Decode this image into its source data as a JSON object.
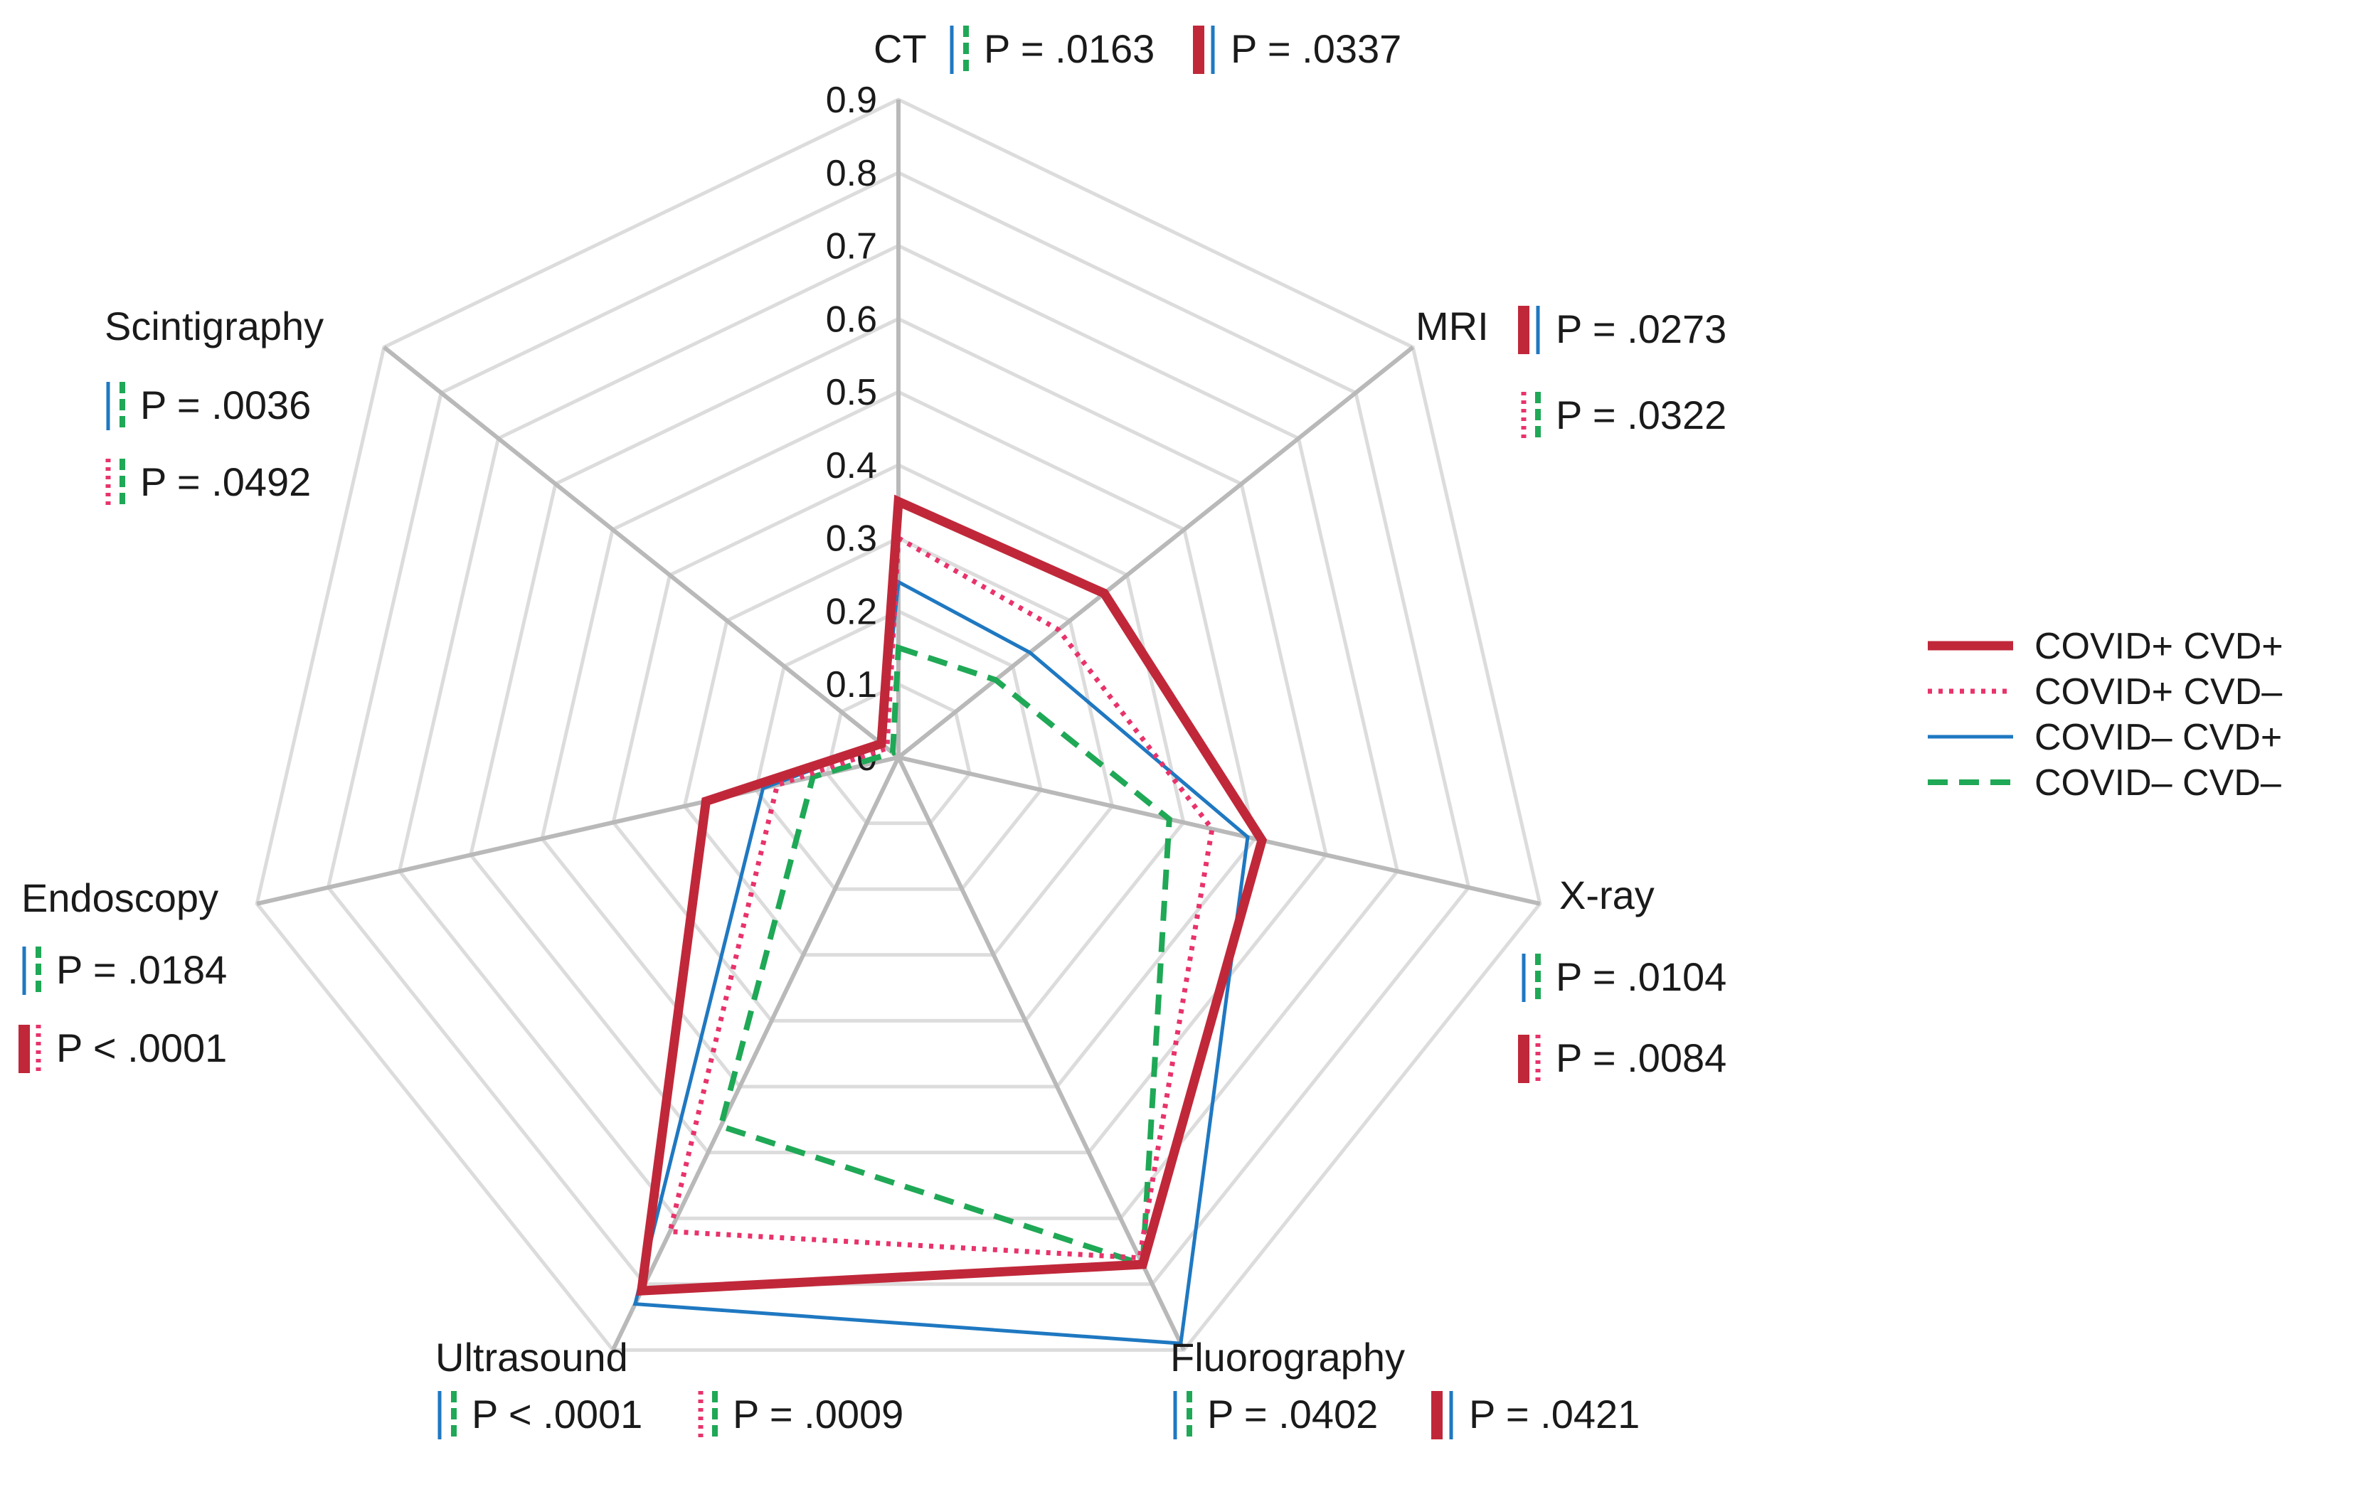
{
  "chart_data": {
    "type": "radar",
    "categories": [
      "CT",
      "MRI",
      "X-ray",
      "Fluorography",
      "Ultrasound",
      "Endoscopy",
      "Scintigraphy"
    ],
    "rlim": [
      0,
      0.9
    ],
    "ticks": [
      "0",
      "0.1",
      "0.2",
      "0.3",
      "0.4",
      "0.5",
      "0.6",
      "0.7",
      "0.8",
      "0.9"
    ],
    "tick_values": [
      0,
      0.1,
      0.2,
      0.3,
      0.4,
      0.5,
      0.6,
      0.7,
      0.8,
      0.9
    ],
    "grid": true,
    "legend_position": "right",
    "series": [
      {
        "key": "s1",
        "name": "COVID+ CVD+",
        "color": "#c0283a",
        "style": "solid-thick",
        "values": [
          0.35,
          0.36,
          0.51,
          0.77,
          0.81,
          0.27,
          0.03
        ]
      },
      {
        "key": "s2",
        "name": "COVID+ CVD–",
        "color": "#e8336b",
        "style": "dotted",
        "values": [
          0.3,
          0.28,
          0.44,
          0.76,
          0.72,
          0.17,
          0.02
        ]
      },
      {
        "key": "s3",
        "name": "COVID– CVD+",
        "color": "#1f78c1",
        "style": "solid-thin",
        "values": [
          0.24,
          0.23,
          0.49,
          0.89,
          0.83,
          0.19,
          0.03
        ]
      },
      {
        "key": "s4",
        "name": "COVID– CVD–",
        "color": "#1fa856",
        "style": "dashed",
        "values": [
          0.15,
          0.17,
          0.38,
          0.77,
          0.56,
          0.12,
          0.01
        ]
      }
    ],
    "annotations": [
      {
        "axis": "CT",
        "texts": [
          {
            "pair": [
              "s3",
              "s4"
            ],
            "text": "P = .0163"
          },
          {
            "pair": [
              "s1",
              "s3"
            ],
            "text": "P = .0337"
          }
        ]
      },
      {
        "axis": "MRI",
        "texts": [
          {
            "pair": [
              "s1",
              "s3"
            ],
            "text": "P = .0273"
          },
          {
            "pair": [
              "s2",
              "s4"
            ],
            "text": "P = .0322"
          }
        ]
      },
      {
        "axis": "X-ray",
        "texts": [
          {
            "pair": [
              "s3",
              "s4"
            ],
            "text": "P = .0104"
          },
          {
            "pair": [
              "s1",
              "s2"
            ],
            "text": "P = .0084"
          }
        ]
      },
      {
        "axis": "Fluorography",
        "texts": [
          {
            "pair": [
              "s3",
              "s4"
            ],
            "text": "P = .0402"
          },
          {
            "pair": [
              "s1",
              "s3"
            ],
            "text": "P = .0421"
          }
        ]
      },
      {
        "axis": "Ultrasound",
        "texts": [
          {
            "pair": [
              "s3",
              "s4"
            ],
            "text": "P < .0001"
          },
          {
            "pair": [
              "s2",
              "s4"
            ],
            "text": "P = .0009"
          }
        ]
      },
      {
        "axis": "Endoscopy",
        "texts": [
          {
            "pair": [
              "s3",
              "s4"
            ],
            "text": "P = .0184"
          },
          {
            "pair": [
              "s1",
              "s2"
            ],
            "text": "P < .0001"
          }
        ]
      },
      {
        "axis": "Scintigraphy",
        "texts": [
          {
            "pair": [
              "s3",
              "s4"
            ],
            "text": "P = .0036"
          },
          {
            "pair": [
              "s2",
              "s4"
            ],
            "text": "P = .0492"
          }
        ]
      }
    ]
  }
}
